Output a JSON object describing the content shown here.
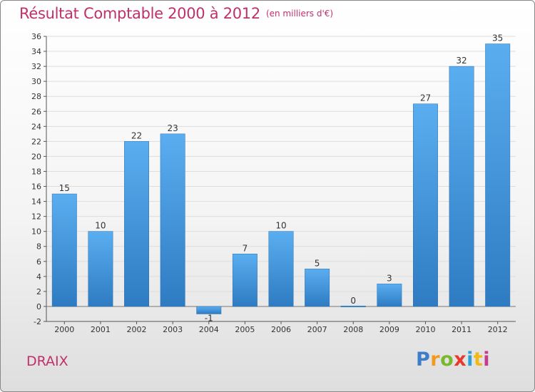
{
  "header": {
    "title": "Résultat Comptable 2000 à 2012",
    "subtitle": "(en milliers d'€)"
  },
  "commune": "DRAIX",
  "logo": {
    "text": "Proxiti",
    "colors": [
      "#3d7dc9",
      "#f39a1e",
      "#7ab82e",
      "#e8392d",
      "#2aa0d8",
      "#f2b817",
      "#c63b8b"
    ]
  },
  "colors": {
    "bar_light": "#5aaef0",
    "bar_dark": "#2e7bc2",
    "title": "#c0306a",
    "grid": "#dddddd"
  },
  "chart_data": {
    "type": "bar",
    "categories": [
      "2000",
      "2001",
      "2002",
      "2003",
      "2004",
      "2005",
      "2006",
      "2007",
      "2008",
      "2009",
      "2010",
      "2011",
      "2012"
    ],
    "values": [
      15,
      10,
      22,
      23,
      -1,
      7,
      10,
      5,
      0,
      3,
      27,
      32,
      35
    ],
    "title": "Résultat Comptable 2000 à 2012",
    "subtitle": "(en milliers d'€)",
    "xlabel": "",
    "ylabel": "",
    "ylim": [
      -2,
      36
    ],
    "yticks": [
      -2,
      0,
      2,
      4,
      6,
      8,
      10,
      12,
      14,
      16,
      18,
      20,
      22,
      24,
      26,
      28,
      30,
      32,
      34,
      36
    ],
    "grid": true,
    "legend": "none"
  }
}
